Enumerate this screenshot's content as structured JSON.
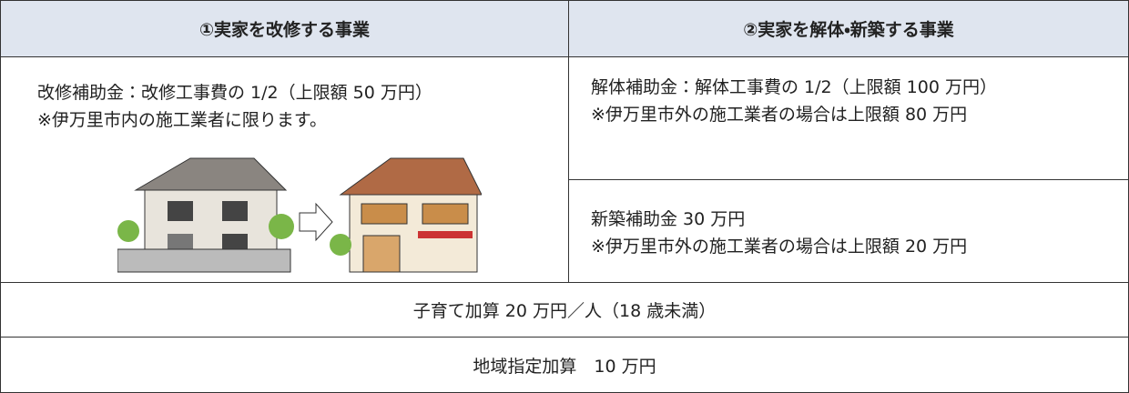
{
  "table": {
    "header": [
      "①実家を改修する事業",
      "②実家を解体・新築する事業"
    ],
    "renovation": {
      "lines": [
        "改修補助金：改修工事費の 1/2（上限額 50 万円）",
        "※伊万里市内の施工業者に限ります。"
      ]
    },
    "demolition": {
      "lines": [
        "解体補助金：解体工事費の 1/2（上限額 100 万円）",
        "※伊万里市外の施工業者の場合は上限額 80 万円"
      ]
    },
    "new_build": {
      "lines": [
        "新築補助金 30 万円",
        "※伊万里市外の施工業者の場合は上限額 20 万円"
      ]
    },
    "child_bonus": "子育て加算 20 万円／人（18 歳未満）",
    "area_bonus": "地域指定加算　10 万円"
  }
}
